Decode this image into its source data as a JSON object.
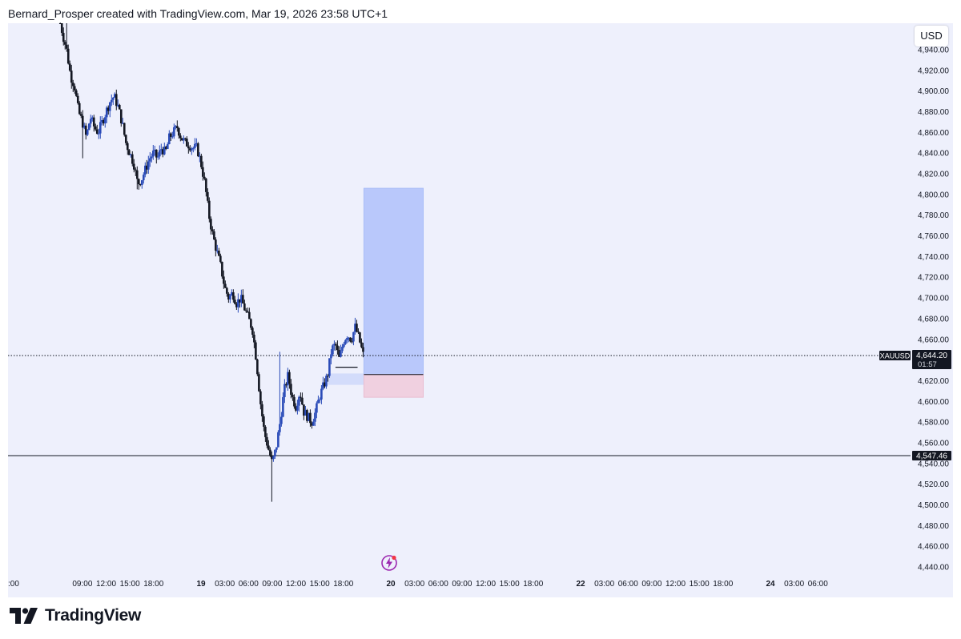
{
  "header": {
    "attribution": "Bernard_Prosper created with TradingView.com, Mar 19, 2026 23:58 UTC+1"
  },
  "currency_button": "USD",
  "brand": "TradingView",
  "colors": {
    "background": "#eef0fc",
    "candle_up": "#2a4bb8",
    "candle_down": "#131722",
    "target_zone": "#b9c8fb",
    "stop_zone": "#f0d0e0",
    "fvg_zone": "#d3dcfb"
  },
  "chart_data": {
    "type": "candlestick",
    "symbol": "XAUUSD",
    "last_price": "4,644.20",
    "countdown": "01:57",
    "level_price": "4,547.46",
    "ylim": [
      4430,
      4960
    ],
    "y_ticks": [
      "4,440.00",
      "4,460.00",
      "4,480.00",
      "4,500.00",
      "4,520.00",
      "4,540.00",
      "4,560.00",
      "4,580.00",
      "4,600.00",
      "4,620.00",
      "4,640.00",
      "4,660.00",
      "4,680.00",
      "4,700.00",
      "4,720.00",
      "4,740.00",
      "4,760.00",
      "4,780.00",
      "4,800.00",
      "4,820.00",
      "4,840.00",
      "4,860.00",
      "4,880.00",
      "4,900.00",
      "4,920.00",
      "4,940.00"
    ],
    "x_labels": [
      {
        "t": 0,
        "label": ":00"
      },
      {
        "t": 9,
        "label": "09:00"
      },
      {
        "t": 12,
        "label": "12:00"
      },
      {
        "t": 15,
        "label": "15:00"
      },
      {
        "t": 18,
        "label": "18:00"
      },
      {
        "t": 24,
        "label": "19",
        "bold": true
      },
      {
        "t": 27,
        "label": "03:00"
      },
      {
        "t": 30,
        "label": "06:00"
      },
      {
        "t": 33,
        "label": "09:00"
      },
      {
        "t": 36,
        "label": "12:00"
      },
      {
        "t": 39,
        "label": "15:00"
      },
      {
        "t": 42,
        "label": "18:00"
      },
      {
        "t": 48,
        "label": "20",
        "bold": true
      },
      {
        "t": 51,
        "label": "03:00"
      },
      {
        "t": 54,
        "label": "06:00"
      },
      {
        "t": 57,
        "label": "09:00"
      },
      {
        "t": 60,
        "label": "12:00"
      },
      {
        "t": 63,
        "label": "15:00"
      },
      {
        "t": 66,
        "label": "18:00"
      },
      {
        "t": 72,
        "label": "22",
        "bold": true
      },
      {
        "t": 75,
        "label": "03:00"
      },
      {
        "t": 78,
        "label": "06:00"
      },
      {
        "t": 81,
        "label": "09:00"
      },
      {
        "t": 84,
        "label": "12:00"
      },
      {
        "t": 87,
        "label": "15:00"
      },
      {
        "t": 90,
        "label": "18:00"
      },
      {
        "t": 96,
        "label": "24",
        "bold": true
      },
      {
        "t": 99,
        "label": "03:00"
      },
      {
        "t": 102,
        "label": "06:00"
      }
    ],
    "price_path": [
      [
        6.0,
        4975
      ],
      [
        6.5,
        4955
      ],
      [
        7.0,
        4940
      ],
      [
        7.5,
        4915
      ],
      [
        8.0,
        4905
      ],
      [
        8.5,
        4880
      ],
      [
        9.0,
        4870
      ],
      [
        9.5,
        4855
      ],
      [
        10.0,
        4875
      ],
      [
        10.5,
        4865
      ],
      [
        11.0,
        4860
      ],
      [
        11.5,
        4870
      ],
      [
        12.0,
        4880
      ],
      [
        12.5,
        4890
      ],
      [
        13.0,
        4895
      ],
      [
        13.5,
        4885
      ],
      [
        14.0,
        4870
      ],
      [
        14.5,
        4850
      ],
      [
        15.0,
        4840
      ],
      [
        15.5,
        4830
      ],
      [
        16.0,
        4810
      ],
      [
        16.5,
        4815
      ],
      [
        17.0,
        4825
      ],
      [
        17.5,
        4835
      ],
      [
        18.0,
        4840
      ],
      [
        18.5,
        4835
      ],
      [
        19.0,
        4845
      ],
      [
        19.5,
        4840
      ],
      [
        20.0,
        4855
      ],
      [
        20.5,
        4860
      ],
      [
        21.0,
        4865
      ],
      [
        21.5,
        4855
      ],
      [
        22.0,
        4850
      ],
      [
        22.5,
        4848
      ],
      [
        23.0,
        4845
      ],
      [
        23.5,
        4845
      ],
      [
        24.0,
        4830
      ],
      [
        24.5,
        4810
      ],
      [
        25.0,
        4780
      ],
      [
        25.5,
        4760
      ],
      [
        26.0,
        4745
      ],
      [
        26.5,
        4730
      ],
      [
        27.0,
        4710
      ],
      [
        27.5,
        4700
      ],
      [
        28.0,
        4705
      ],
      [
        28.5,
        4695
      ],
      [
        29.0,
        4700
      ],
      [
        29.5,
        4690
      ],
      [
        30.0,
        4680
      ],
      [
        30.5,
        4670
      ],
      [
        31.0,
        4640
      ],
      [
        31.5,
        4600
      ],
      [
        32.0,
        4570
      ],
      [
        32.5,
        4555
      ],
      [
        33.0,
        4540
      ],
      [
        33.5,
        4555
      ],
      [
        34.0,
        4580
      ],
      [
        34.5,
        4610
      ],
      [
        35.0,
        4625
      ],
      [
        35.5,
        4605
      ],
      [
        36.0,
        4595
      ],
      [
        36.5,
        4610
      ],
      [
        37.0,
        4590
      ],
      [
        37.5,
        4585
      ],
      [
        38.0,
        4580
      ],
      [
        38.5,
        4590
      ],
      [
        39.0,
        4605
      ],
      [
        39.5,
        4615
      ],
      [
        40.0,
        4625
      ],
      [
        40.5,
        4650
      ],
      [
        41.0,
        4655
      ],
      [
        41.5,
        4640
      ],
      [
        42.0,
        4658
      ],
      [
        42.5,
        4665
      ],
      [
        43.0,
        4660
      ],
      [
        43.5,
        4672
      ],
      [
        44.0,
        4660
      ],
      [
        44.5,
        4645
      ]
    ],
    "wick_extremes": [
      [
        7.0,
        4975
      ],
      [
        9.0,
        4835
      ],
      [
        16.0,
        4805
      ],
      [
        33.0,
        4503
      ],
      [
        34.0,
        4648
      ],
      [
        43.5,
        4678
      ]
    ],
    "position": {
      "t_start": 44.6,
      "t_end": 52.1,
      "entry": 4626,
      "target": 4806,
      "stop": 4604
    },
    "fvg_zone": {
      "t_start": 40.0,
      "t_end": 44.6,
      "top": 4627,
      "bottom": 4616
    },
    "entry_marker": {
      "t_start": 41.0,
      "t_end": 43.8,
      "price": 4633
    }
  }
}
